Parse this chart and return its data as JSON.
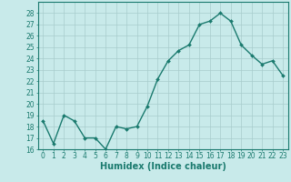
{
  "x": [
    0,
    1,
    2,
    3,
    4,
    5,
    6,
    7,
    8,
    9,
    10,
    11,
    12,
    13,
    14,
    15,
    16,
    17,
    18,
    19,
    20,
    21,
    22,
    23
  ],
  "y": [
    18.5,
    16.5,
    19.0,
    18.5,
    17.0,
    17.0,
    16.0,
    18.0,
    17.8,
    18.0,
    19.8,
    22.2,
    23.8,
    24.7,
    25.2,
    27.0,
    27.3,
    28.0,
    27.3,
    25.2,
    24.3,
    23.5,
    23.8,
    22.5
  ],
  "line_color": "#1a7a6e",
  "marker": "D",
  "marker_size": 2.0,
  "bg_color": "#c8eaea",
  "grid_color": "#a8cccc",
  "xlabel": "Humidex (Indice chaleur)",
  "ylim": [
    16,
    29
  ],
  "xlim": [
    -0.5,
    23.5
  ],
  "yticks": [
    16,
    17,
    18,
    19,
    20,
    21,
    22,
    23,
    24,
    25,
    26,
    27,
    28
  ],
  "xticks": [
    0,
    1,
    2,
    3,
    4,
    5,
    6,
    7,
    8,
    9,
    10,
    11,
    12,
    13,
    14,
    15,
    16,
    17,
    18,
    19,
    20,
    21,
    22,
    23
  ],
  "tick_label_size": 5.5,
  "xlabel_size": 7.0,
  "linewidth": 1.0
}
